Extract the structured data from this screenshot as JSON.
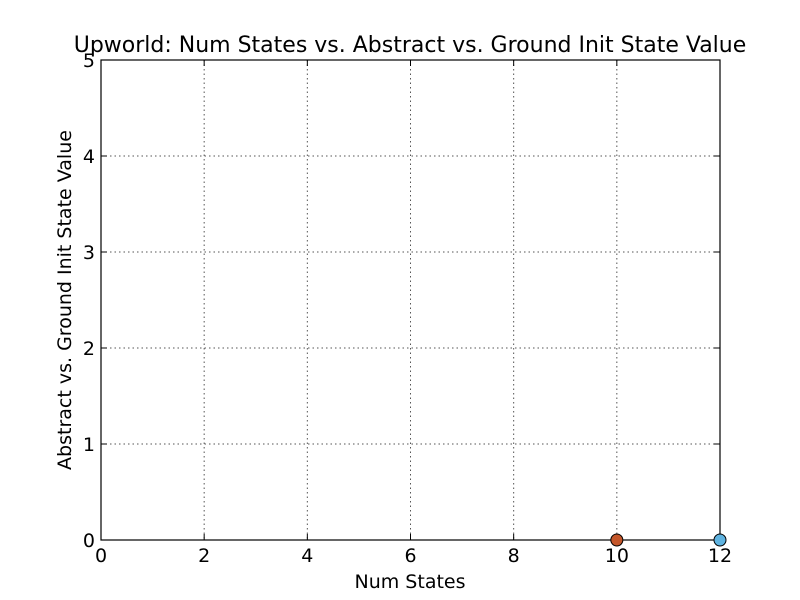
{
  "chart_data": {
    "type": "scatter",
    "title": "Upworld: Num States vs. Abstract vs. Ground Init State Value",
    "xlabel": "Num States",
    "ylabel": "Abstract vs. Ground Init State Value",
    "xlim": [
      0,
      12
    ],
    "ylim": [
      0,
      5
    ],
    "xticks": [
      0,
      2,
      4,
      6,
      8,
      10,
      12
    ],
    "yticks": [
      0,
      1,
      2,
      3,
      4,
      5
    ],
    "grid": true,
    "series": [
      {
        "points": [
          {
            "x": 10,
            "y": 0
          }
        ],
        "color": "#c4562a"
      },
      {
        "points": [
          {
            "x": 12,
            "y": 0
          }
        ],
        "color": "#5fb3e0"
      }
    ]
  }
}
